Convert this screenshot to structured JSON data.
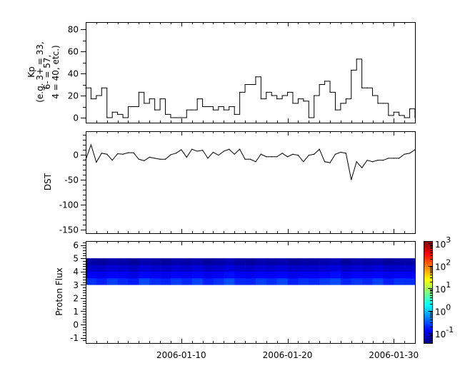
{
  "chart_data": [
    {
      "type": "line",
      "ylabel_lines": [
        "Kp",
        "(e.g. 3+ = 33,",
        "6- = 57,",
        "4 = 40, etc.)"
      ],
      "ylim": [
        -4.5,
        86.5
      ],
      "yticks": [
        0,
        20,
        40,
        60,
        80
      ],
      "xlim": [
        "2006-01-01",
        "2006-02-01"
      ],
      "color": "#000000",
      "x": [
        "2006-01-01T00",
        "2006-01-01T12",
        "2006-01-02T00",
        "2006-01-02T12",
        "2006-01-03T00",
        "2006-01-03T12",
        "2006-01-04T00",
        "2006-01-04T12",
        "2006-01-05T00",
        "2006-01-05T12",
        "2006-01-06T00",
        "2006-01-06T12",
        "2006-01-07T00",
        "2006-01-07T12",
        "2006-01-08T00",
        "2006-01-08T12",
        "2006-01-09T00",
        "2006-01-09T12",
        "2006-01-10T00",
        "2006-01-10T12",
        "2006-01-11T00",
        "2006-01-11T12",
        "2006-01-12T00",
        "2006-01-12T12",
        "2006-01-13T00",
        "2006-01-13T12",
        "2006-01-14T00",
        "2006-01-14T12",
        "2006-01-15T00",
        "2006-01-15T12",
        "2006-01-16T00",
        "2006-01-16T12",
        "2006-01-17T00",
        "2006-01-17T12",
        "2006-01-18T00",
        "2006-01-18T12",
        "2006-01-19T00",
        "2006-01-19T12",
        "2006-01-20T00",
        "2006-01-20T12",
        "2006-01-21T00",
        "2006-01-21T12",
        "2006-01-22T00",
        "2006-01-22T12",
        "2006-01-23T00",
        "2006-01-23T12",
        "2006-01-24T00",
        "2006-01-24T12",
        "2006-01-25T00",
        "2006-01-25T12",
        "2006-01-26T00",
        "2006-01-26T12",
        "2006-01-27T00",
        "2006-01-27T12",
        "2006-01-28T00",
        "2006-01-28T12",
        "2006-01-29T00",
        "2006-01-29T12",
        "2006-01-30T00",
        "2006-01-30T12",
        "2006-01-31T00",
        "2006-01-31T12",
        "2006-02-01T00"
      ],
      "y": [
        27,
        17,
        20,
        27,
        0,
        5,
        3,
        0,
        10,
        10,
        23,
        13,
        17,
        7,
        17,
        3,
        0,
        0,
        0,
        7,
        7,
        17,
        10,
        10,
        7,
        10,
        7,
        10,
        3,
        23,
        30,
        30,
        37,
        17,
        23,
        20,
        17,
        20,
        23,
        13,
        17,
        15,
        0,
        20,
        30,
        33,
        23,
        7,
        13,
        17,
        43,
        53,
        27,
        27,
        20,
        13,
        13,
        2,
        5,
        2,
        0,
        8,
        0
      ]
    },
    {
      "type": "line",
      "ylabel": "DST",
      "ylim": [
        -157,
        47
      ],
      "yticks": [
        -150,
        -100,
        -50,
        0
      ],
      "xlim": [
        "2006-01-01",
        "2006-02-01"
      ],
      "color": "#000000",
      "y": [
        -10,
        20,
        -15,
        3,
        1,
        -11,
        2,
        1,
        4,
        4,
        -9,
        -12,
        -5,
        -7,
        -9,
        -9,
        0,
        3,
        10,
        -5,
        11,
        7,
        9,
        -7,
        5,
        -1,
        7,
        11,
        1,
        11,
        -9,
        -9,
        -14,
        1,
        -4,
        -4,
        -4,
        3,
        -4,
        1,
        -1,
        -14,
        -1,
        1,
        11,
        -14,
        -16,
        1,
        5,
        3,
        -50,
        -14,
        -26,
        -11,
        -14,
        -11,
        -11,
        -7,
        -7,
        -7,
        1,
        3,
        10
      ]
    },
    {
      "type": "heatmap",
      "ylabel": "Proton Flux",
      "ylim": [
        -1.4,
        6.3
      ],
      "yticks": [
        -1,
        0,
        1,
        2,
        3,
        4,
        5,
        6
      ],
      "xlim": [
        "2006-01-01",
        "2006-02-01"
      ],
      "xticks": [
        "2006-01-10",
        "2006-01-20",
        "2006-01-30"
      ],
      "colorscale": "jet",
      "color_log_range": [
        -1.44,
        3.1
      ],
      "colorbar_ticks": [
        {
          "base": "10",
          "exp": "3",
          "value": 1000
        },
        {
          "base": "10",
          "exp": "2",
          "value": 100
        },
        {
          "base": "10",
          "exp": "1",
          "value": 10
        },
        {
          "base": "10",
          "exp": "0",
          "value": 1
        },
        {
          "base": "10",
          "exp": "-1",
          "value": 0.1
        }
      ],
      "y_bins": [
        [
          3.0,
          3.5
        ],
        [
          3.5,
          4.0
        ],
        [
          4.0,
          4.5
        ],
        [
          4.5,
          5.0
        ]
      ],
      "days": [
        "2006-01-01",
        "2006-01-02",
        "2006-01-03",
        "2006-01-04",
        "2006-01-05",
        "2006-01-06",
        "2006-01-07",
        "2006-01-08",
        "2006-01-09",
        "2006-01-10",
        "2006-01-11",
        "2006-01-12",
        "2006-01-13",
        "2006-01-14",
        "2006-01-15",
        "2006-01-16",
        "2006-01-17",
        "2006-01-18",
        "2006-01-19",
        "2006-01-20",
        "2006-01-21",
        "2006-01-22",
        "2006-01-23",
        "2006-01-24",
        "2006-01-25",
        "2006-01-26",
        "2006-01-27",
        "2006-01-28",
        "2006-01-29",
        "2006-01-30",
        "2006-01-31"
      ],
      "values": [
        [
          0.22,
          0.18,
          0.25,
          0.2,
          0.17,
          0.28,
          0.21,
          0.19,
          0.24,
          0.2,
          0.26,
          0.18,
          0.22,
          0.3,
          0.2,
          0.19,
          0.25,
          0.21,
          0.27,
          0.18,
          0.22,
          0.2,
          0.24,
          0.29,
          0.19,
          0.23,
          0.2,
          0.26,
          0.18,
          0.22,
          0.21
        ],
        [
          0.12,
          0.11,
          0.13,
          0.12,
          0.1,
          0.14,
          0.12,
          0.11,
          0.13,
          0.12,
          0.14,
          0.11,
          0.12,
          0.15,
          0.12,
          0.11,
          0.13,
          0.12,
          0.14,
          0.11,
          0.12,
          0.12,
          0.13,
          0.15,
          0.11,
          0.13,
          0.12,
          0.14,
          0.11,
          0.12,
          0.12
        ],
        [
          0.08,
          0.075,
          0.085,
          0.08,
          0.07,
          0.09,
          0.08,
          0.075,
          0.085,
          0.08,
          0.09,
          0.075,
          0.08,
          0.095,
          0.08,
          0.075,
          0.085,
          0.08,
          0.09,
          0.075,
          0.08,
          0.08,
          0.085,
          0.095,
          0.075,
          0.085,
          0.08,
          0.09,
          0.075,
          0.08,
          0.08
        ],
        [
          0.055,
          0.05,
          0.06,
          0.055,
          0.05,
          0.06,
          0.055,
          0.05,
          0.06,
          0.055,
          0.06,
          0.05,
          0.055,
          0.065,
          0.055,
          0.05,
          0.06,
          0.055,
          0.06,
          0.05,
          0.055,
          0.055,
          0.06,
          0.065,
          0.05,
          0.06,
          0.055,
          0.06,
          0.05,
          0.055,
          0.055
        ]
      ]
    }
  ]
}
